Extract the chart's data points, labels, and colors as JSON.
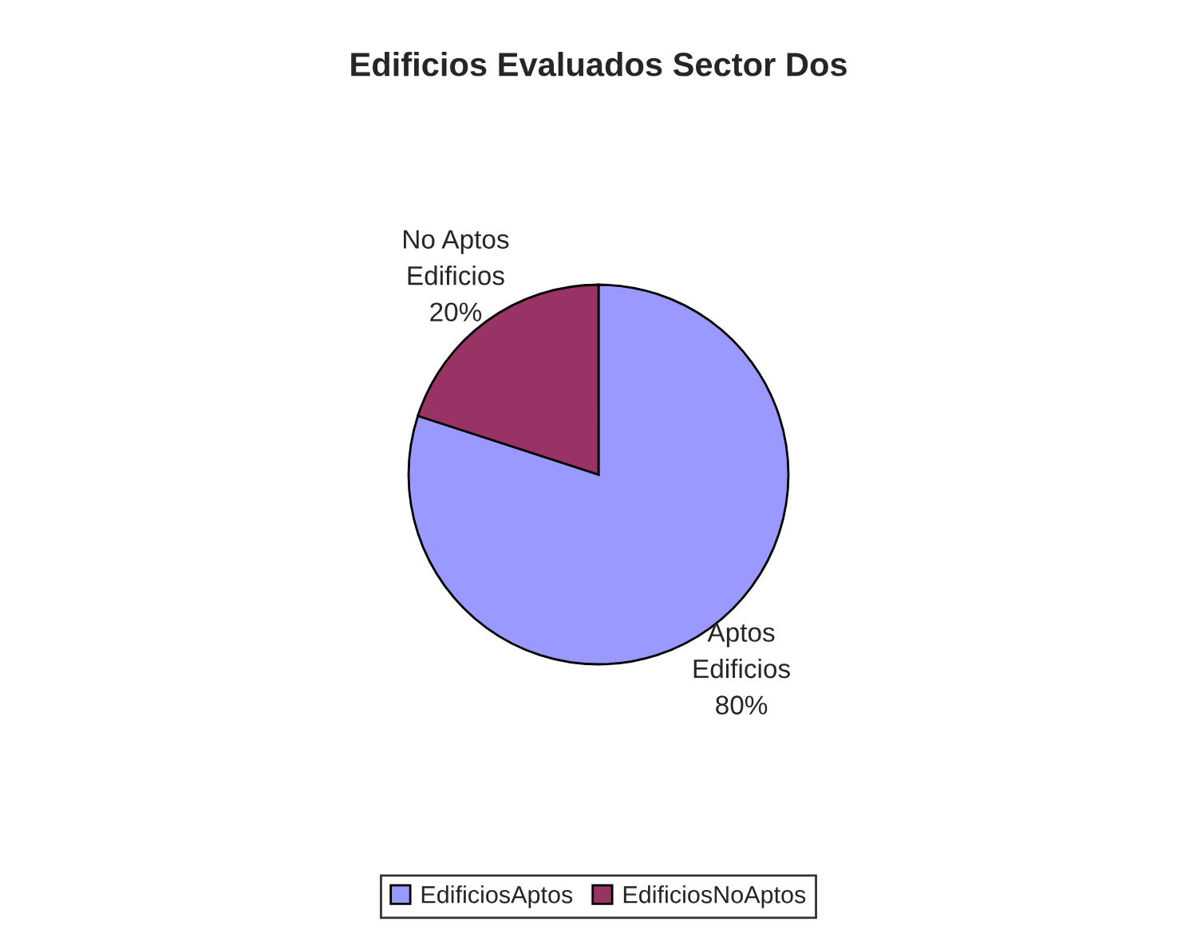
{
  "chart_data": {
    "type": "pie",
    "title": "Edificios Evaluados Sector Dos",
    "categories": [
      "EdificiosAptos",
      "EdificiosNoAptos"
    ],
    "values": [
      80,
      20
    ],
    "colors": [
      "#9999ff",
      "#993366"
    ],
    "value_labels": [
      "Aptos\nEdificios\n80%",
      "No Aptos\nEdificios\n20%"
    ],
    "legend": "bottom"
  }
}
